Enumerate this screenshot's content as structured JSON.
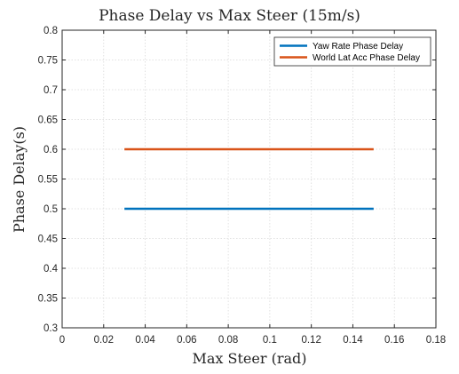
{
  "chart_data": {
    "type": "line",
    "title": "Phase Delay vs Max Steer (15m/s)",
    "xlabel": "Max Steer (rad)",
    "ylabel": "Phase Delay(s)",
    "xlim": [
      0,
      0.18
    ],
    "ylim": [
      0.3,
      0.8
    ],
    "xticks": [
      0,
      0.02,
      0.04,
      0.06,
      0.08,
      0.1,
      0.12,
      0.14,
      0.16,
      0.18
    ],
    "xtick_labels": [
      "0",
      "0.02",
      "0.04",
      "0.06",
      "0.08",
      "0.1",
      "0.12",
      "0.14",
      "0.16",
      "0.18"
    ],
    "yticks": [
      0.3,
      0.35,
      0.4,
      0.45,
      0.5,
      0.55,
      0.6,
      0.65,
      0.7,
      0.75,
      0.8
    ],
    "ytick_labels": [
      "0.3",
      "0.35",
      "0.4",
      "0.45",
      "0.5",
      "0.55",
      "0.6",
      "0.65",
      "0.7",
      "0.75",
      "0.8"
    ],
    "grid": true,
    "legend_position": "top-right",
    "series": [
      {
        "name": "Yaw Rate Phase Delay",
        "color": "#0072BD",
        "x": [
          0.03,
          0.15
        ],
        "y": [
          0.5,
          0.5
        ]
      },
      {
        "name": "World Lat Acc Phase Delay",
        "color": "#D95319",
        "x": [
          0.03,
          0.15
        ],
        "y": [
          0.6,
          0.6
        ]
      }
    ]
  }
}
